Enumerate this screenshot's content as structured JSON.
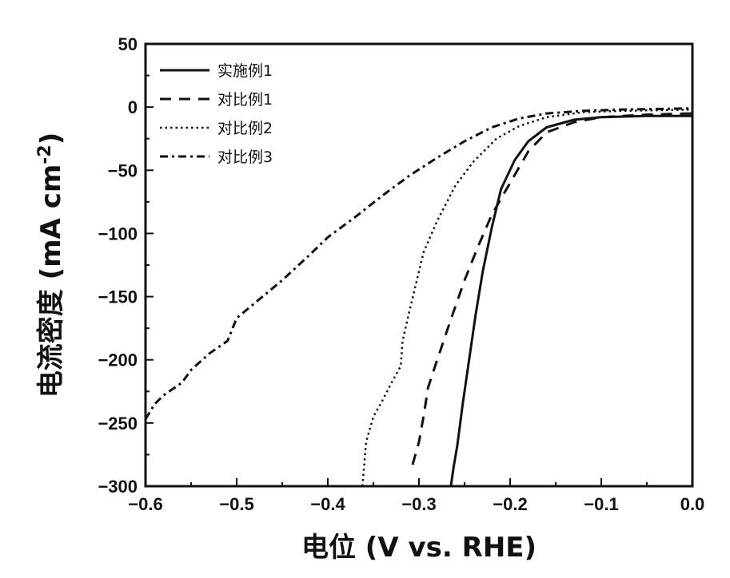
{
  "chart_data": {
    "type": "line",
    "xlabel": "电位 (V vs. RHE)",
    "ylabel": {
      "prefix": "电流密度 (mA cm",
      "superscript": "-2",
      "suffix": ")"
    },
    "xlim": [
      -0.6,
      0.0
    ],
    "ylim": [
      -300,
      50
    ],
    "xticks": [
      -0.6,
      -0.5,
      -0.4,
      -0.3,
      -0.2,
      -0.1,
      0.0
    ],
    "xtick_labels": [
      "−0.6",
      "−0.5",
      "−0.4",
      "−0.3",
      "−0.2",
      "−0.1",
      "0.0"
    ],
    "yticks": [
      50,
      0,
      -50,
      -100,
      -150,
      -200,
      -250,
      -300
    ],
    "ytick_labels": [
      "50",
      "0",
      "−50",
      "−100",
      "−150",
      "−200",
      "−250",
      "−300"
    ],
    "legend_position": "top-left",
    "grid": false,
    "series": [
      {
        "name": "实施例1",
        "dash": "solid",
        "color": "#111111",
        "points": [
          [
            -0.265,
            -300
          ],
          [
            -0.262,
            -285
          ],
          [
            -0.258,
            -268
          ],
          [
            -0.252,
            -235
          ],
          [
            -0.245,
            -200
          ],
          [
            -0.238,
            -165
          ],
          [
            -0.23,
            -130
          ],
          [
            -0.22,
            -95
          ],
          [
            -0.21,
            -65
          ],
          [
            -0.195,
            -42
          ],
          [
            -0.18,
            -27
          ],
          [
            -0.16,
            -16
          ],
          [
            -0.13,
            -10
          ],
          [
            -0.1,
            -8
          ],
          [
            -0.05,
            -7
          ],
          [
            0.0,
            -7
          ]
        ]
      },
      {
        "name": "对比例1",
        "dash": "dashed",
        "color": "#111111",
        "points": [
          [
            -0.307,
            -283
          ],
          [
            -0.3,
            -265
          ],
          [
            -0.295,
            -245
          ],
          [
            -0.29,
            -222
          ],
          [
            -0.28,
            -200
          ],
          [
            -0.265,
            -168
          ],
          [
            -0.25,
            -137
          ],
          [
            -0.235,
            -110
          ],
          [
            -0.22,
            -85
          ],
          [
            -0.2,
            -60
          ],
          [
            -0.18,
            -35
          ],
          [
            -0.16,
            -20
          ],
          [
            -0.13,
            -12
          ],
          [
            -0.1,
            -8
          ],
          [
            -0.05,
            -6
          ],
          [
            0.0,
            -5
          ]
        ]
      },
      {
        "name": "对比例2",
        "dash": "dotted",
        "color": "#111111",
        "points": [
          [
            -0.362,
            -300
          ],
          [
            -0.358,
            -265
          ],
          [
            -0.35,
            -245
          ],
          [
            -0.34,
            -232
          ],
          [
            -0.33,
            -218
          ],
          [
            -0.32,
            -205
          ],
          [
            -0.318,
            -185
          ],
          [
            -0.31,
            -160
          ],
          [
            -0.305,
            -145
          ],
          [
            -0.295,
            -115
          ],
          [
            -0.28,
            -90
          ],
          [
            -0.26,
            -62
          ],
          [
            -0.24,
            -43
          ],
          [
            -0.215,
            -25
          ],
          [
            -0.19,
            -15
          ],
          [
            -0.16,
            -8
          ],
          [
            -0.12,
            -4
          ],
          [
            -0.08,
            -3
          ],
          [
            0.0,
            -2
          ]
        ]
      },
      {
        "name": "对比例3",
        "dash": "dashdot",
        "color": "#111111",
        "points": [
          [
            -0.6,
            -247
          ],
          [
            -0.59,
            -235
          ],
          [
            -0.58,
            -228
          ],
          [
            -0.56,
            -218
          ],
          [
            -0.55,
            -208
          ],
          [
            -0.53,
            -195
          ],
          [
            -0.51,
            -185
          ],
          [
            -0.5,
            -167
          ],
          [
            -0.48,
            -155
          ],
          [
            -0.45,
            -137
          ],
          [
            -0.42,
            -117
          ],
          [
            -0.4,
            -103
          ],
          [
            -0.37,
            -87
          ],
          [
            -0.34,
            -70
          ],
          [
            -0.31,
            -54
          ],
          [
            -0.28,
            -40
          ],
          [
            -0.25,
            -27
          ],
          [
            -0.22,
            -16
          ],
          [
            -0.19,
            -9
          ],
          [
            -0.16,
            -5
          ],
          [
            -0.12,
            -3
          ],
          [
            -0.08,
            -2
          ],
          [
            0.0,
            -1
          ]
        ]
      }
    ]
  }
}
